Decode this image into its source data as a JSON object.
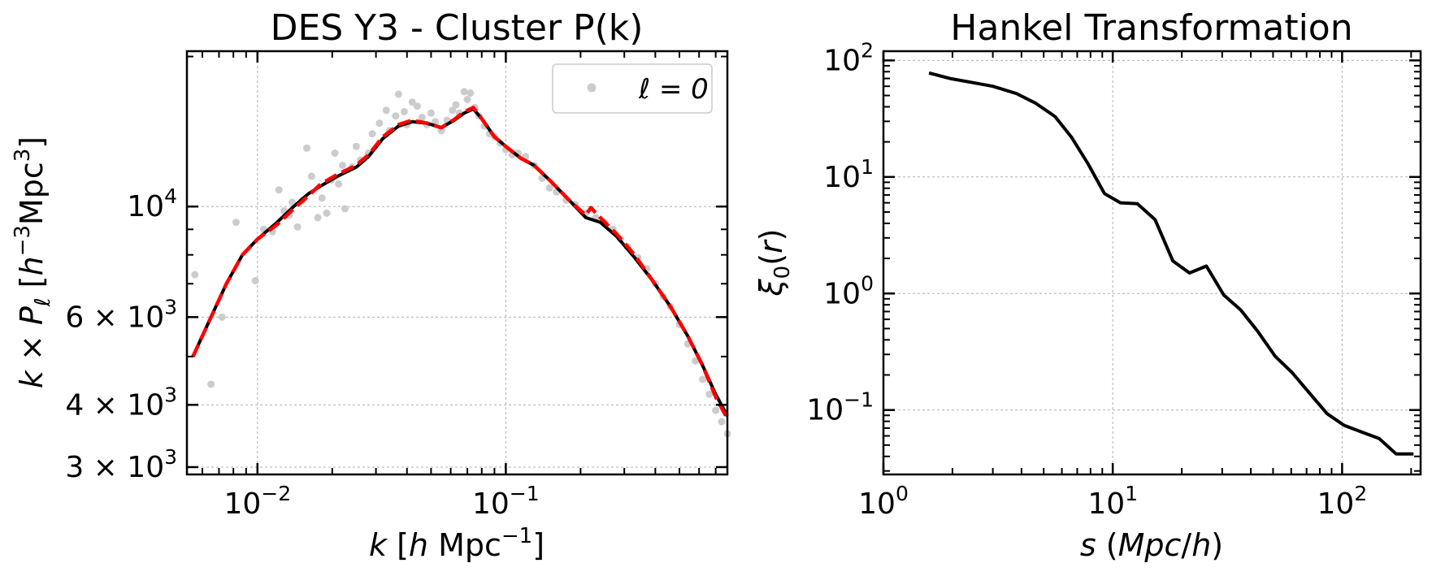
{
  "chart_data": [
    {
      "type": "scatter+line",
      "title": "DES Y3 - Cluster P(k)",
      "xlabel": "k [h Mpc⁻¹]",
      "ylabel": "k × P_ℓ [h⁻³Mpc³]",
      "x_scale": "log",
      "y_scale": "log",
      "xlim": [
        0.0052,
        0.78
      ],
      "ylim": [
        2900,
        20500
      ],
      "x_ticks": [
        {
          "value": 0.01,
          "mantissa": "",
          "base": "10",
          "exp": "−2"
        },
        {
          "value": 0.1,
          "mantissa": "",
          "base": "10",
          "exp": "−1"
        }
      ],
      "y_ticks": [
        {
          "value": 3000,
          "mantissa": "3 × ",
          "base": "10",
          "exp": "3"
        },
        {
          "value": 4000,
          "mantissa": "4 × ",
          "base": "10",
          "exp": "3"
        },
        {
          "value": 6000,
          "mantissa": "6 × ",
          "base": "10",
          "exp": "3"
        },
        {
          "value": 10000,
          "mantissa": "",
          "base": "10",
          "exp": "4"
        }
      ],
      "grid": true,
      "legend": {
        "position": "top-right",
        "entries": [
          {
            "label": "ℓ = 0",
            "marker": "gray-dot"
          }
        ]
      },
      "series": [
        {
          "name": "ℓ = 0",
          "kind": "scatter",
          "color": "#cccccc",
          "points": [
            [
              0.0056,
              7300
            ],
            [
              0.0065,
              4400
            ],
            [
              0.0072,
              6000
            ],
            [
              0.0082,
              9300
            ],
            [
              0.0098,
              7100
            ],
            [
              0.0106,
              9000
            ],
            [
              0.0115,
              8900
            ],
            [
              0.0122,
              10800
            ],
            [
              0.0128,
              9800
            ],
            [
              0.0134,
              9600
            ],
            [
              0.0138,
              10200
            ],
            [
              0.0145,
              9100
            ],
            [
              0.0152,
              10300
            ],
            [
              0.0158,
              13100
            ],
            [
              0.0165,
              11500
            ],
            [
              0.0175,
              9500
            ],
            [
              0.0182,
              10400
            ],
            [
              0.019,
              9700
            ],
            [
              0.0198,
              11300
            ],
            [
              0.0205,
              12800
            ],
            [
              0.0212,
              11100
            ],
            [
              0.022,
              12100
            ],
            [
              0.0225,
              9900
            ],
            [
              0.024,
              12000
            ],
            [
              0.025,
              13200
            ],
            [
              0.026,
              12400
            ],
            [
              0.028,
              12800
            ],
            [
              0.029,
              14000
            ],
            [
              0.031,
              14700
            ],
            [
              0.033,
              15600
            ],
            [
              0.034,
              14200
            ],
            [
              0.036,
              15200
            ],
            [
              0.037,
              16800
            ],
            [
              0.039,
              15500
            ],
            [
              0.04,
              14600
            ],
            [
              0.042,
              16200
            ],
            [
              0.044,
              15900
            ],
            [
              0.046,
              15100
            ],
            [
              0.048,
              14600
            ],
            [
              0.05,
              15400
            ],
            [
              0.052,
              14800
            ],
            [
              0.055,
              14200
            ],
            [
              0.058,
              14900
            ],
            [
              0.061,
              15600
            ],
            [
              0.063,
              16000
            ],
            [
              0.065,
              15400
            ],
            [
              0.068,
              17000
            ],
            [
              0.07,
              16400
            ],
            [
              0.072,
              16900
            ],
            [
              0.075,
              15800
            ],
            [
              0.078,
              15200
            ],
            [
              0.082,
              14500
            ],
            [
              0.086,
              14000
            ],
            [
              0.09,
              13800
            ],
            [
              0.095,
              13400
            ],
            [
              0.1,
              13000
            ],
            [
              0.106,
              12700
            ],
            [
              0.112,
              12800
            ],
            [
              0.12,
              12600
            ],
            [
              0.13,
              12100
            ],
            [
              0.14,
              11400
            ],
            [
              0.15,
              10900
            ],
            [
              0.16,
              10700
            ],
            [
              0.175,
              10300
            ],
            [
              0.19,
              10100
            ],
            [
              0.21,
              9700
            ],
            [
              0.23,
              9500
            ],
            [
              0.25,
              9300
            ],
            [
              0.27,
              9000
            ],
            [
              0.29,
              8600
            ],
            [
              0.31,
              8300
            ],
            [
              0.34,
              7900
            ],
            [
              0.37,
              7500
            ],
            [
              0.4,
              7000
            ],
            [
              0.43,
              6600
            ],
            [
              0.46,
              6300
            ],
            [
              0.5,
              5800
            ],
            [
              0.54,
              5300
            ],
            [
              0.58,
              4900
            ],
            [
              0.62,
              4500
            ],
            [
              0.66,
              4200
            ],
            [
              0.7,
              3900
            ],
            [
              0.74,
              3700
            ],
            [
              0.78,
              3500
            ]
          ]
        },
        {
          "kind": "line",
          "color": "#000000",
          "style": "solid",
          "points": [
            [
              0.0055,
              5000
            ],
            [
              0.0064,
              5900
            ],
            [
              0.0075,
              7000
            ],
            [
              0.0087,
              8000
            ],
            [
              0.01,
              8600
            ],
            [
              0.012,
              9300
            ],
            [
              0.014,
              10000
            ],
            [
              0.016,
              10600
            ],
            [
              0.018,
              11000
            ],
            [
              0.021,
              11500
            ],
            [
              0.025,
              12000
            ],
            [
              0.028,
              12600
            ],
            [
              0.032,
              13700
            ],
            [
              0.037,
              14500
            ],
            [
              0.042,
              14800
            ],
            [
              0.048,
              14700
            ],
            [
              0.055,
              14400
            ],
            [
              0.062,
              14900
            ],
            [
              0.068,
              15400
            ],
            [
              0.074,
              15700
            ],
            [
              0.08,
              15000
            ],
            [
              0.09,
              13800
            ],
            [
              0.1,
              13200
            ],
            [
              0.115,
              12500
            ],
            [
              0.13,
              12100
            ],
            [
              0.15,
              11300
            ],
            [
              0.18,
              10300
            ],
            [
              0.21,
              9500
            ],
            [
              0.24,
              9300
            ],
            [
              0.28,
              8700
            ],
            [
              0.33,
              7900
            ],
            [
              0.39,
              7100
            ],
            [
              0.46,
              6300
            ],
            [
              0.54,
              5500
            ],
            [
              0.62,
              4800
            ],
            [
              0.7,
              4200
            ],
            [
              0.78,
              3800
            ]
          ]
        },
        {
          "kind": "line",
          "color": "#ff0000",
          "style": "dashed",
          "points": [
            [
              0.0055,
              5000
            ],
            [
              0.0064,
              5900
            ],
            [
              0.0075,
              7000
            ],
            [
              0.0087,
              8000
            ],
            [
              0.01,
              8600
            ],
            [
              0.012,
              9200
            ],
            [
              0.014,
              9900
            ],
            [
              0.016,
              10500
            ],
            [
              0.018,
              11100
            ],
            [
              0.021,
              11600
            ],
            [
              0.025,
              12100
            ],
            [
              0.028,
              12700
            ],
            [
              0.032,
              13800
            ],
            [
              0.037,
              14600
            ],
            [
              0.042,
              14900
            ],
            [
              0.048,
              14700
            ],
            [
              0.055,
              14400
            ],
            [
              0.062,
              14950
            ],
            [
              0.068,
              15500
            ],
            [
              0.074,
              15800
            ],
            [
              0.08,
              15000
            ],
            [
              0.09,
              13800
            ],
            [
              0.1,
              13200
            ],
            [
              0.115,
              12500
            ],
            [
              0.13,
              12100
            ],
            [
              0.15,
              11300
            ],
            [
              0.18,
              10300
            ],
            [
              0.21,
              9600
            ],
            [
              0.22,
              9950
            ],
            [
              0.24,
              9500
            ],
            [
              0.28,
              8800
            ],
            [
              0.33,
              8000
            ],
            [
              0.39,
              7100
            ],
            [
              0.46,
              6300
            ],
            [
              0.54,
              5500
            ],
            [
              0.62,
              4800
            ],
            [
              0.7,
              4150
            ],
            [
              0.78,
              3750
            ]
          ]
        }
      ]
    },
    {
      "type": "line",
      "title": "Hankel Transformation",
      "xlabel": "s (Mpc/h)",
      "ylabel": "ξ₀(r)",
      "x_scale": "log",
      "y_scale": "log",
      "xlim": [
        1,
        220
      ],
      "ylim": [
        0.028,
        120
      ],
      "x_ticks": [
        {
          "value": 1,
          "mantissa": "",
          "base": "10",
          "exp": "0"
        },
        {
          "value": 10,
          "mantissa": "",
          "base": "10",
          "exp": "1"
        },
        {
          "value": 100,
          "mantissa": "",
          "base": "10",
          "exp": "2"
        }
      ],
      "y_ticks": [
        {
          "value": 0.1,
          "mantissa": "",
          "base": "10",
          "exp": "−1"
        },
        {
          "value": 1,
          "mantissa": "",
          "base": "10",
          "exp": "0"
        },
        {
          "value": 10,
          "mantissa": "",
          "base": "10",
          "exp": "1"
        },
        {
          "value": 100,
          "mantissa": "",
          "base": "10",
          "exp": "2"
        }
      ],
      "grid": true,
      "series": [
        {
          "kind": "line",
          "color": "#000000",
          "style": "solid",
          "points": [
            [
              1.58,
              78
            ],
            [
              1.95,
              70
            ],
            [
              2.4,
              65
            ],
            [
              3.0,
              60
            ],
            [
              3.8,
              52
            ],
            [
              4.6,
              43
            ],
            [
              5.6,
              33
            ],
            [
              6.6,
              22
            ],
            [
              7.8,
              13
            ],
            [
              9.2,
              7.2
            ],
            [
              10.8,
              6.0
            ],
            [
              12.8,
              5.9
            ],
            [
              15.3,
              4.3
            ],
            [
              18.3,
              1.9
            ],
            [
              21.6,
              1.5
            ],
            [
              25.6,
              1.72
            ],
            [
              30.5,
              0.97
            ],
            [
              36.2,
              0.72
            ],
            [
              43,
              0.47
            ],
            [
              51,
              0.29
            ],
            [
              60.5,
              0.21
            ],
            [
              72,
              0.14
            ],
            [
              86,
              0.093
            ],
            [
              102,
              0.074
            ],
            [
              121,
              0.065
            ],
            [
              145,
              0.057
            ],
            [
              172,
              0.042
            ],
            [
              205,
              0.042
            ]
          ]
        }
      ]
    }
  ]
}
